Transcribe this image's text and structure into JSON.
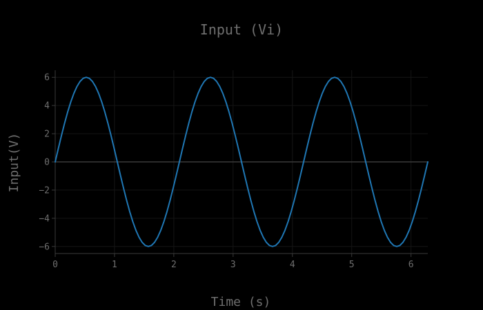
{
  "chart_data": {
    "type": "line",
    "title": "Input (Vi)",
    "xlabel": "Time (s)",
    "ylabel": "Input(V)",
    "xlim": [
      0,
      6.2832
    ],
    "ylim": [
      -6.5,
      6.5
    ],
    "grid": true,
    "x_ticks": [
      0,
      1,
      2,
      3,
      4,
      5,
      6
    ],
    "x_tick_labels": [
      "0",
      "1",
      "2",
      "3",
      "4",
      "5",
      "6"
    ],
    "y_ticks": [
      -6,
      -4,
      -2,
      0,
      2,
      4,
      6
    ],
    "y_tick_labels": [
      "−6",
      "−4",
      "−2",
      "0",
      "2",
      "4",
      "6"
    ],
    "series": [
      {
        "color": "#1f77b4",
        "x": [
          0.0,
          0.0524,
          0.1047,
          0.1571,
          0.2094,
          0.2618,
          0.3142,
          0.3665,
          0.4189,
          0.4712,
          0.5236,
          0.576,
          0.6283,
          0.6807,
          0.733,
          0.7854,
          0.8378,
          0.8901,
          0.9425,
          0.9948,
          1.0472,
          1.0996,
          1.1519,
          1.2043,
          1.2566,
          1.309,
          1.3614,
          1.4137,
          1.4661,
          1.5184,
          1.5708,
          1.6232,
          1.6755,
          1.7279,
          1.7802,
          1.8326,
          1.885,
          1.9373,
          1.9897,
          2.042,
          2.0944,
          2.1468,
          2.1991,
          2.2515,
          2.3038,
          2.3562,
          2.4086,
          2.4609,
          2.5133,
          2.5656,
          2.618,
          2.6704,
          2.7227,
          2.7751,
          2.8274,
          2.8798,
          2.9322,
          2.9845,
          3.0369,
          3.0892,
          3.1416,
          3.194,
          3.2463,
          3.2987,
          3.351,
          3.4034,
          3.4558,
          3.5081,
          3.5605,
          3.6128,
          3.6652,
          3.7176,
          3.7699,
          3.8223,
          3.8746,
          3.927,
          3.9794,
          4.0317,
          4.0841,
          4.1364,
          4.1888,
          4.2412,
          4.2935,
          4.3459,
          4.3982,
          4.4506,
          4.503,
          4.5553,
          4.6077,
          4.66,
          4.7124,
          4.7648,
          4.8171,
          4.8695,
          4.9218,
          4.9742,
          5.0266,
          5.0789,
          5.1313,
          5.1836,
          5.236,
          5.2884,
          5.3407,
          5.3931,
          5.4454,
          5.4978,
          5.5502,
          5.6025,
          5.6549,
          5.7072,
          5.7596,
          5.812,
          5.8643,
          5.9167,
          5.969,
          6.0214,
          6.0738,
          6.1261,
          6.1785,
          6.2308,
          6.2832
        ],
        "y": [
          0.0,
          0.9386,
          1.8541,
          2.7239,
          3.5267,
          4.2426,
          4.8541,
          5.3457,
          5.7063,
          5.9271,
          6.0,
          5.9271,
          5.7063,
          5.3457,
          4.8541,
          4.2426,
          3.5267,
          2.7239,
          1.8541,
          0.9386,
          0.0,
          -0.9386,
          -1.8541,
          -2.7239,
          -3.5267,
          -4.2426,
          -4.8541,
          -5.3457,
          -5.7063,
          -5.9271,
          -6.0,
          -5.9271,
          -5.7063,
          -5.3457,
          -4.8541,
          -4.2426,
          -3.5267,
          -2.7239,
          -1.8541,
          -0.9386,
          0.0,
          0.9386,
          1.8541,
          2.7239,
          3.5267,
          4.2426,
          4.8541,
          5.3457,
          5.7063,
          5.9271,
          6.0,
          5.9271,
          5.7063,
          5.3457,
          4.8541,
          4.2426,
          3.5267,
          2.7239,
          1.8541,
          0.9386,
          0.0,
          -0.9386,
          -1.8541,
          -2.7239,
          -3.5267,
          -4.2426,
          -4.8541,
          -5.3457,
          -5.7063,
          -5.9271,
          -6.0,
          -5.9271,
          -5.7063,
          -5.3457,
          -4.8541,
          -4.2426,
          -3.5267,
          -2.7239,
          -1.8541,
          -0.9386,
          0.0,
          0.9386,
          1.8541,
          2.7239,
          3.5267,
          4.2426,
          4.8541,
          5.3457,
          5.7063,
          5.9271,
          6.0,
          5.9271,
          5.7063,
          5.3457,
          4.8541,
          4.2426,
          3.5267,
          2.7239,
          1.8541,
          0.9386,
          0.0,
          -0.9386,
          -1.8541,
          -2.7239,
          -3.5267,
          -4.2426,
          -4.8541,
          -5.3457,
          -5.7063,
          -5.9271,
          -6.0,
          -5.9271,
          -5.7063,
          -5.3457,
          -4.8541,
          -4.2426,
          -3.5267,
          -2.7239,
          -1.8541,
          -0.9386,
          0.0
        ]
      }
    ]
  }
}
